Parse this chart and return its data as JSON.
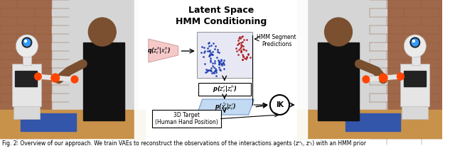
{
  "figsize": [
    6.4,
    2.23
  ],
  "dpi": 100,
  "title": "Latent Space\nHMM Conditioning",
  "title_fontsize": 9,
  "title_fontweight": "bold",
  "caption": "Fig. 2: Overview of our approach. We train VAEs to reconstruct the observations of the interactions agents (zᴴₜ, zʳₜ) with an HMM prior",
  "caption_fontsize": 5.5,
  "bg_color": "#ffffff",
  "diagram": {
    "encoder_label": "q($z_t^h$|$x_t^h$)",
    "prior_label": "p($z_t^r$|$z_t^h$)",
    "decoder_label": "p($\\hat{x}_t^r$|$z_t^r$)",
    "hmm_label": "HMM Segment\nPredictions",
    "ik_label": "IK",
    "target_label": "3D Target\n(Human Hand Position)",
    "encoder_pink": "#f5c0c0",
    "decoder_blue": "#b8d4f0",
    "hmm_scatter_blue": "#1133aa",
    "hmm_scatter_red": "#aa1111",
    "hmm_box_bg": "#e8e8f5"
  }
}
